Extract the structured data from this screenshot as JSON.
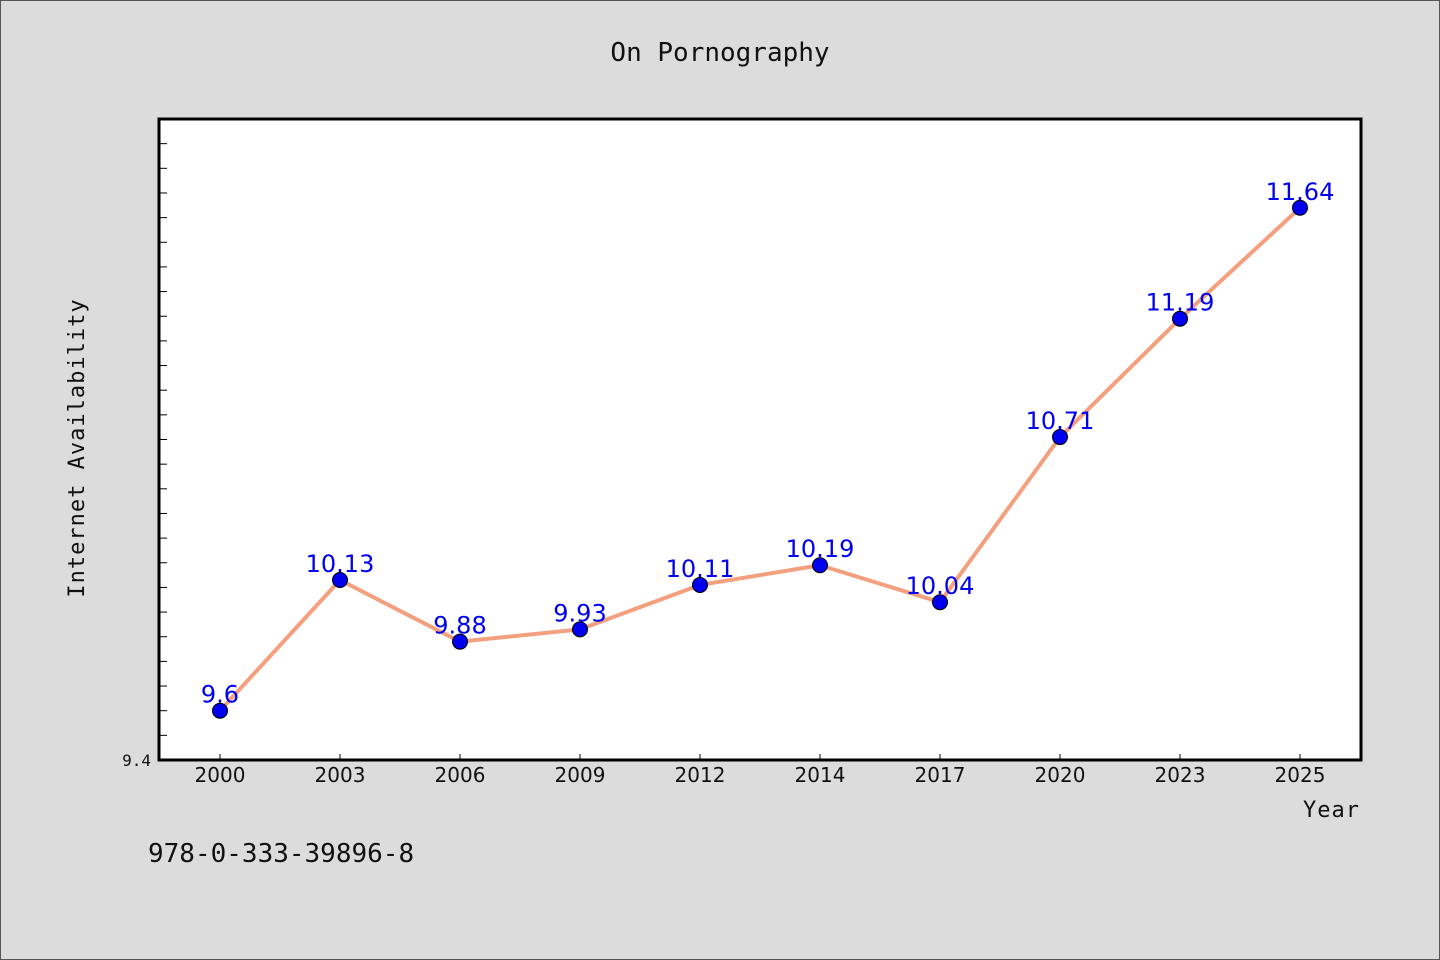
{
  "chart_data": {
    "type": "line",
    "title": "On Pornography",
    "xlabel": "Year",
    "ylabel": "Internet Availability",
    "categories": [
      "2000",
      "2003",
      "2006",
      "2009",
      "2012",
      "2014",
      "2017",
      "2020",
      "2023",
      "2025"
    ],
    "series": [
      {
        "values": [
          9.6,
          10.13,
          9.88,
          9.93,
          10.11,
          10.19,
          10.04,
          10.71,
          11.19,
          11.64
        ],
        "data_labels": [
          "9.6",
          "10.13",
          "9.88",
          "9.93",
          "10.11",
          "10.19",
          "10.04",
          "10.71",
          "11.19",
          "11.64"
        ],
        "line_color": "#f4a07e",
        "marker_color": "#0000ee"
      }
    ],
    "ylim": [
      9.4,
      12.0
    ],
    "yticks_labeled": [
      "9.4"
    ],
    "grid": false,
    "legend": "none"
  },
  "footer": {
    "code": "978-0-333-39896-8"
  }
}
